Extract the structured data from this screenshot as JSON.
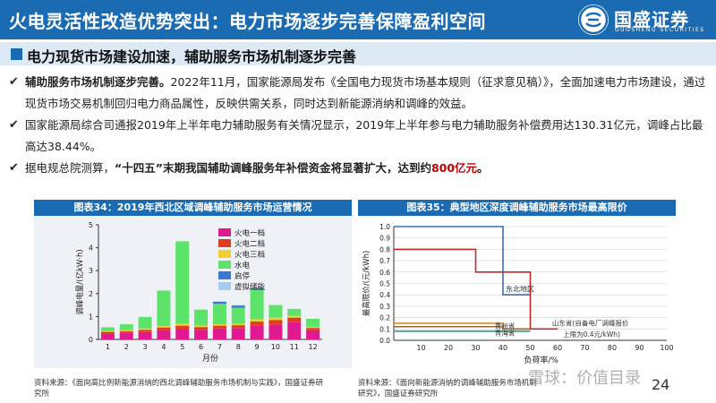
{
  "header": {
    "title": "火电灵活性改造优势突出：电力市场逐步完善保障盈利空间",
    "logo_cn": "国盛证券",
    "logo_en": "GUOSHENG SECURITIES"
  },
  "section_title": "电力现货市场建设加速，辅助服务市场机制逐步完善",
  "bullets": [
    {
      "lead": "辅助服务市场机制逐步完善。",
      "text": "2022年11月，国家能源局发布《全国电力现货市场基本规则（征求意见稿）》，全面加速电力市场建设，通过现货市场交易机制回归电力商品属性，反映供需关系，同时达到新能源消纳和调峰的效益。"
    },
    {
      "text": "国家能源局综合司通报2019年上半年电力辅助服务有关情况显示，2019年上半年参与电力辅助服务补偿费用达130.31亿元，调峰占比最高达38.44%。"
    },
    {
      "pre": "据电规总院测算，",
      "bold": "“十四五”末期我国辅助调峰服务年补偿资金将显著扩大，达到约",
      "highlight": "800亿元",
      "post": "。"
    }
  ],
  "figure34": {
    "title": "图表34：2019年西北区域调峰辅助服务市场运营情况",
    "source": "资料来源：《面向高比例新能源消纳的西北调峰辅助服务市场机制与实践》，国盛证券研究所",
    "chart_data": {
      "type": "bar",
      "stacked": true,
      "title": "",
      "xlabel": "月份",
      "ylabel": "调峰电量/(亿kW·h)",
      "ylim": [
        0,
        5
      ],
      "yticks": [
        0,
        1,
        2,
        3,
        4,
        5
      ],
      "categories": [
        "1",
        "2",
        "3",
        "4",
        "5",
        "6",
        "7",
        "8",
        "9",
        "10",
        "11",
        "12"
      ],
      "legend_position": "top-right",
      "series": [
        {
          "name": "火电一档",
          "color": "#e0198f",
          "values": [
            0.25,
            0.28,
            0.32,
            0.4,
            0.45,
            0.42,
            0.48,
            0.5,
            0.6,
            0.65,
            0.75,
            0.4
          ]
        },
        {
          "name": "火电二档",
          "color": "#e03c1e",
          "values": [
            0.08,
            0.08,
            0.1,
            0.12,
            0.15,
            0.12,
            0.12,
            0.12,
            0.18,
            0.2,
            0.2,
            0.1
          ]
        },
        {
          "name": "火电三档",
          "color": "#f0d030",
          "values": [
            0.05,
            0.05,
            0.06,
            0.06,
            0.08,
            0.06,
            0.06,
            0.06,
            0.1,
            0.1,
            0.08,
            0.05
          ]
        },
        {
          "name": "水电",
          "color": "#5ee36a",
          "values": [
            0.15,
            0.25,
            0.5,
            1.55,
            3.6,
            0.7,
            0.9,
            0.7,
            1.3,
            0.55,
            0.3,
            0.35
          ]
        },
        {
          "name": "启停",
          "color": "#3a78d8",
          "values": [
            0,
            0,
            0,
            0,
            0,
            0,
            0.08,
            0.1,
            0.05,
            0,
            0,
            0
          ]
        },
        {
          "name": "虚拟储能",
          "color": "#a8ccf0",
          "values": [
            0,
            0,
            0,
            0,
            0,
            0,
            0.02,
            0.02,
            0.02,
            0,
            0,
            0
          ]
        }
      ]
    }
  },
  "figure35": {
    "title": "图表35：典型地区深度调峰辅助服务市场最高限价",
    "source": "资料来源：《面向新能源消纳的调峰辅助服务市场机制研究》，国盛证券研究所",
    "chart_data": {
      "type": "line",
      "step": true,
      "title": "",
      "xlabel": "负荷率/%",
      "ylabel": "最高限价/(元/kWh)",
      "xlim": [
        0,
        100
      ],
      "ylim": [
        0,
        1.0
      ],
      "xticks": [
        10,
        20,
        30,
        40,
        50,
        60,
        70,
        80,
        90,
        100
      ],
      "yticks": [
        0,
        0.1,
        0.2,
        0.3,
        0.4,
        0.5,
        0.6,
        0.7,
        0.8,
        0.9,
        1.0
      ],
      "series": [
        {
          "name": "东北地区",
          "color": "#3b6fb6",
          "points": [
            [
              0,
              1.0
            ],
            [
              40,
              1.0
            ],
            [
              40,
              0.4
            ],
            [
              50,
              0.4
            ]
          ]
        },
        {
          "name": "",
          "color": "#c0282a",
          "points": [
            [
              0,
              0.8
            ],
            [
              30,
              0.8
            ],
            [
              30,
              0.6
            ],
            [
              50,
              0.6
            ],
            [
              50,
              0.1
            ],
            [
              60,
              0.1
            ]
          ]
        },
        {
          "name": "山东省(自备电厂调峰报价上限为0.4元/kWh)",
          "color": "#e08a2a",
          "points": [
            [
              0,
              0.15
            ],
            [
              40,
              0.15
            ],
            [
              40,
              0.1
            ],
            [
              50,
              0.1
            ]
          ]
        },
        {
          "name": "贵州省",
          "color": "#8a6a3a",
          "points": [
            [
              0,
              0.12
            ],
            [
              40,
              0.12
            ],
            [
              40,
              0.1
            ],
            [
              50,
              0.1
            ]
          ]
        },
        {
          "name": "青海省",
          "color": "#2aa36a",
          "points": [
            [
              0,
              0.08
            ],
            [
              50,
              0.08
            ]
          ]
        }
      ],
      "annotations": [
        "东北地区",
        "山东省(自备电厂调峰报价",
        "上限为0.4元/kWh)",
        "贵州省",
        "青海省"
      ]
    }
  },
  "page_number": "24",
  "watermark": "雪球：价值目录"
}
